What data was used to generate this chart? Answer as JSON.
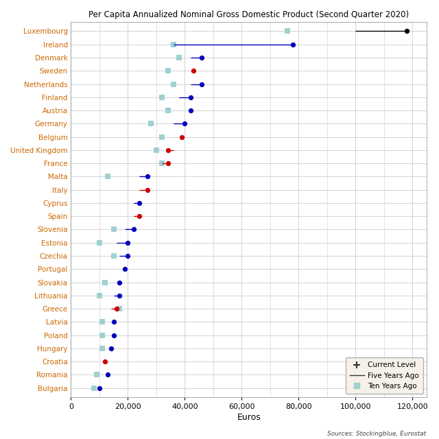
{
  "title": "Per Capita Annualized Nominal Gross Domestic Product (Second Quarter 2020)",
  "xlabel": "Euros",
  "source": "Sources: Stockingblue, Eurostat",
  "countries": [
    "Luxembourg",
    "Ireland",
    "Denmark",
    "Sweden",
    "Netherlands",
    "Finland",
    "Austria",
    "Germany",
    "Belgium",
    "United Kingdom",
    "France",
    "Malta",
    "Italy",
    "Cyprus",
    "Spain",
    "Slovenia",
    "Estonia",
    "Czechia",
    "Portugal",
    "Slovakia",
    "Lithuania",
    "Greece",
    "Latvia",
    "Poland",
    "Hungary",
    "Croatia",
    "Romania",
    "Bulgaria"
  ],
  "current": [
    118000,
    78000,
    46000,
    43000,
    46000,
    42000,
    42000,
    40000,
    39000,
    34000,
    34000,
    27000,
    27000,
    24000,
    24000,
    22000,
    20000,
    20000,
    19000,
    17000,
    17000,
    16000,
    15000,
    15000,
    14000,
    12000,
    13000,
    10000
  ],
  "five_years_ago": [
    100000,
    36000,
    42000,
    null,
    42000,
    38000,
    null,
    36000,
    null,
    36000,
    32000,
    24000,
    24000,
    22000,
    22000,
    19000,
    16000,
    17000,
    null,
    null,
    15000,
    14000,
    null,
    null,
    null,
    null,
    null,
    null
  ],
  "ten_years_ago": [
    76000,
    36000,
    38000,
    34000,
    36000,
    32000,
    34000,
    28000,
    32000,
    30000,
    32000,
    13000,
    null,
    null,
    null,
    15000,
    10000,
    15000,
    null,
    12000,
    10000,
    17000,
    11000,
    11000,
    11000,
    null,
    9000,
    8000
  ],
  "dot_colors": [
    "black",
    "blue",
    "blue",
    "red",
    "blue",
    "blue",
    "blue",
    "blue",
    "red",
    "red",
    "red",
    "blue",
    "red",
    "blue",
    "red",
    "blue",
    "blue",
    "blue",
    "blue",
    "blue",
    "blue",
    "red",
    "blue",
    "blue",
    "blue",
    "red",
    "blue",
    "blue"
  ],
  "line_colors": [
    "black",
    "blue",
    "blue",
    "red",
    "blue",
    "blue",
    "blue",
    "blue",
    "red",
    "red",
    "red",
    "blue",
    "red",
    "blue",
    "red",
    "blue",
    "blue",
    "blue",
    "blue",
    "blue",
    "blue",
    "red",
    "blue",
    "blue",
    "blue",
    "red",
    "blue",
    "blue"
  ],
  "ten_years_color": "#a0d0d0",
  "five_years_color_pink": "#f0b0b0",
  "background_color": "#ffffff",
  "grid_color": "#cccccc",
  "xlim": [
    0,
    125000
  ],
  "ylim": [
    -0.7,
    27.7
  ],
  "xticks": [
    0,
    20000,
    40000,
    60000,
    80000,
    100000,
    120000
  ],
  "figsize": [
    6.4,
    6.4
  ],
  "dpi": 100,
  "label_fontsize": 7.5,
  "title_fontsize": 8.5
}
